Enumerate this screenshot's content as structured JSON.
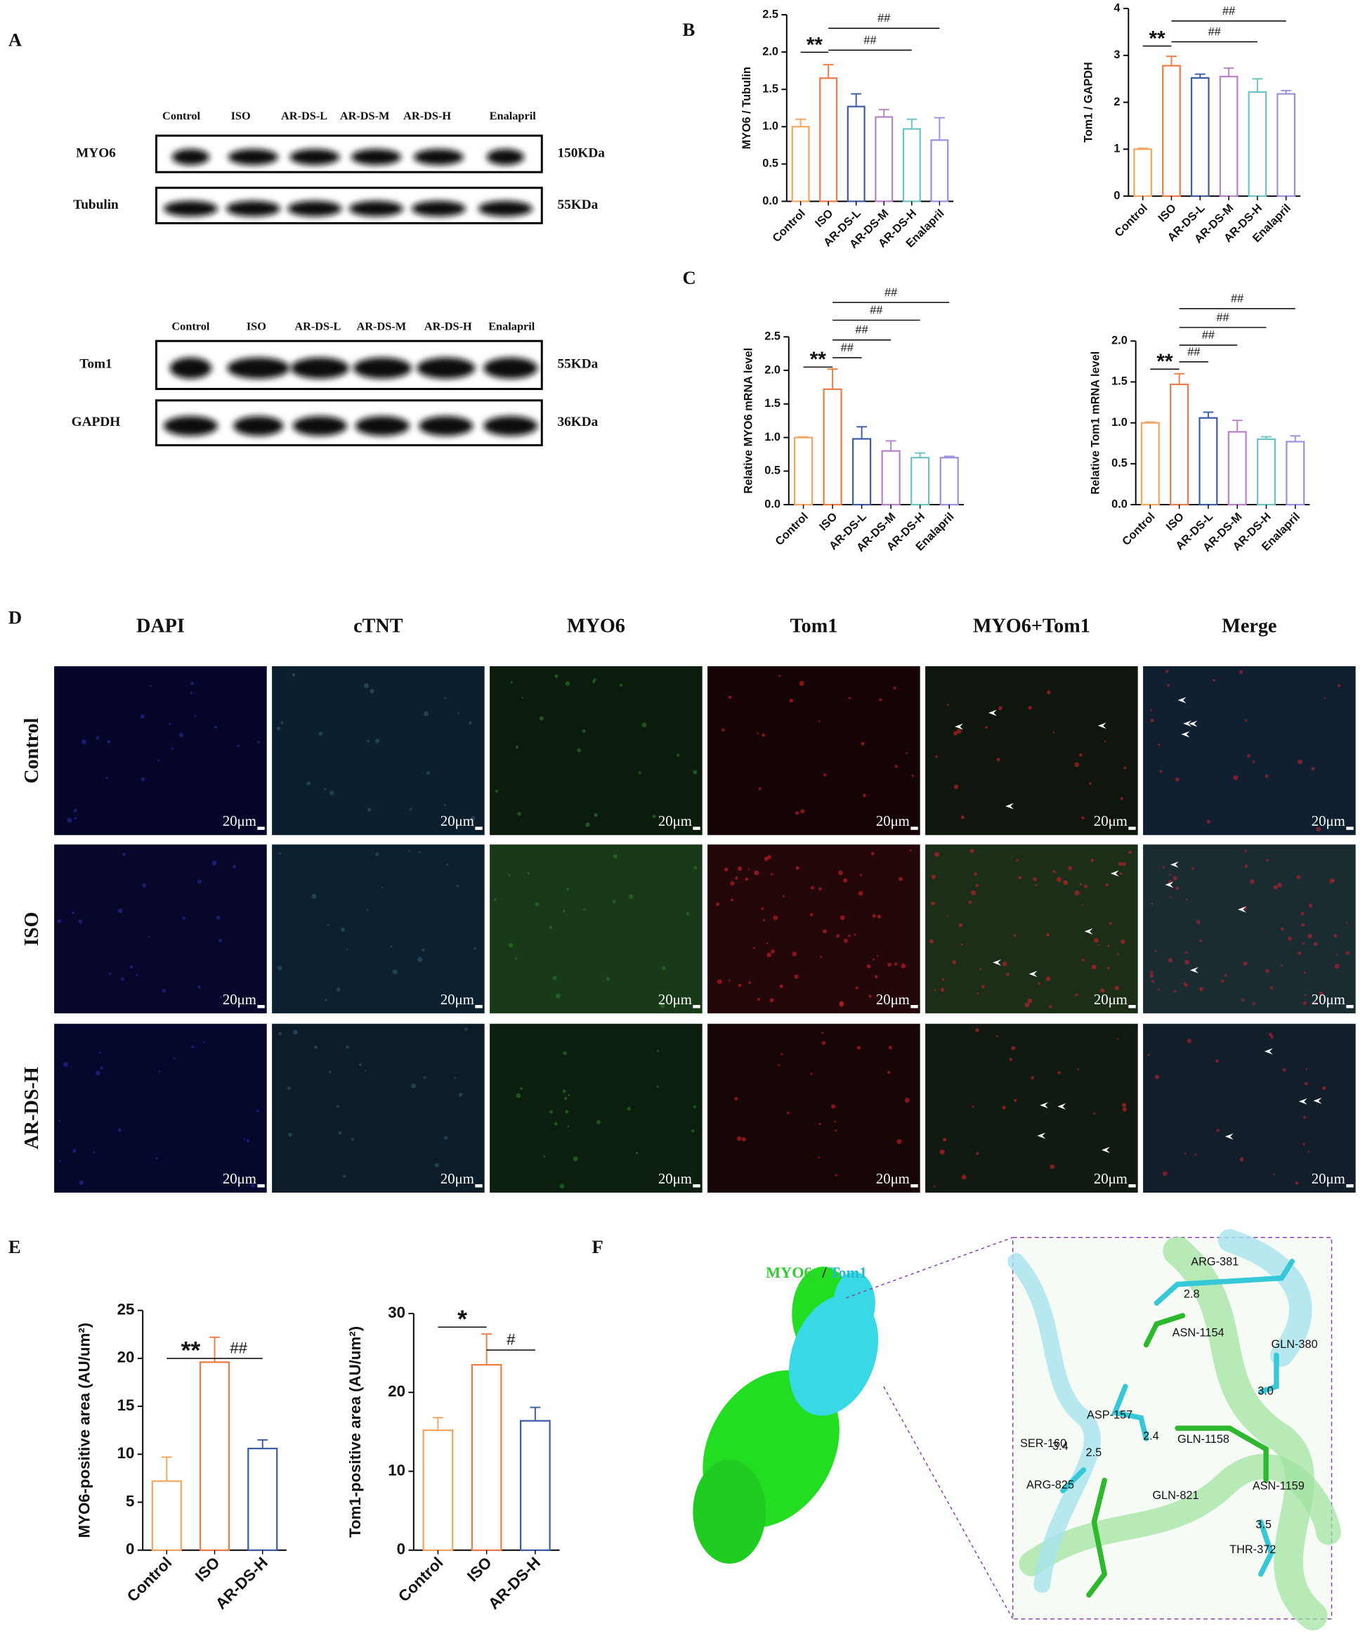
{
  "panel_labels": [
    "A",
    "B",
    "C",
    "D",
    "E",
    "F"
  ],
  "blot_1": {
    "lanes": [
      "Control",
      "ISO",
      "AR-DS-L",
      "AR-DS-M",
      "AR-DS-H",
      "Enalapril"
    ],
    "rows": [
      "MYO6",
      "Tubulin"
    ],
    "sizes": [
      "150KDa",
      "55KDa"
    ]
  },
  "blot_2": {
    "lanes": [
      "Control",
      "ISO",
      "AR-DS-L",
      "AR-DS-M",
      "AR-DS-H",
      "Enalapril"
    ],
    "rows": [
      "Tom1",
      "GAPDH"
    ],
    "sizes": [
      "55KDa",
      "36KDa"
    ]
  },
  "microscopy": {
    "columns": [
      "DAPI",
      "cTNT",
      "MYO6",
      "Tom1",
      "MYO6+Tom1",
      "Merge"
    ],
    "rows": [
      "Control",
      "ISO",
      "AR-DS-H"
    ],
    "scale_bar": "20μm"
  },
  "docking": {
    "legend": [
      "MYO6",
      "/",
      "Tom1"
    ],
    "labels": [
      "ARG-381",
      "2.8",
      "ASN-1154",
      "GLN-380",
      "3.0",
      "ASP-157",
      "GLN-1158",
      "SER-160",
      "3.4",
      "2.5",
      "2.4",
      "ASN-1159",
      "ARG-825",
      "GLN-821",
      "3.5",
      "THR-372"
    ]
  },
  "chart_data": [
    {
      "type": "bar",
      "y_label": "MYO6 / Tubulin",
      "categories": [
        "Control",
        "ISO",
        "AR-DS-L",
        "AR-DS-M",
        "AR-DS-H",
        "Enalapril"
      ],
      "values": [
        1.0,
        1.65,
        1.27,
        1.13,
        0.97,
        0.82
      ],
      "errors": [
        0.1,
        0.18,
        0.17,
        0.1,
        0.13,
        0.3
      ],
      "colors": [
        "#f5a55e",
        "#ee7b48",
        "#3d5ca8",
        "#b981c9",
        "#6cc4c2",
        "#9a92e0"
      ],
      "ylim": [
        0,
        2.5
      ],
      "yticks": [
        {
          "value": 0,
          "label": "0.0"
        },
        0.5,
        {
          "value": 1,
          "label": "1.0"
        },
        1.5,
        {
          "value": 2,
          "label": "2.0"
        },
        2.5
      ],
      "annotations": [
        "**",
        "##",
        "##"
      ]
    },
    {
      "type": "bar",
      "y_label": "Tom1 / GAPDH",
      "categories": [
        "Control",
        "ISO",
        "AR-DS-L",
        "AR-DS-M",
        "AR-DS-H",
        "Enalapril"
      ],
      "values": [
        1.0,
        2.78,
        2.52,
        2.55,
        2.22,
        2.18
      ],
      "errors": [
        0.02,
        0.2,
        0.08,
        0.18,
        0.28,
        0.07
      ],
      "colors": [
        "#f5a55e",
        "#ee7b48",
        "#3d5ca8",
        "#b981c9",
        "#6cc4c2",
        "#9a92e0"
      ],
      "ylim": [
        0,
        4
      ],
      "yticks": [
        0,
        1,
        2,
        3,
        4
      ],
      "annotations": [
        "**",
        "##",
        "##"
      ]
    },
    {
      "type": "bar",
      "y_label": "Relative MYO6 mRNA level",
      "categories": [
        "Control",
        "ISO",
        "AR-DS-L",
        "AR-DS-M",
        "AR-DS-H",
        "Enalapril"
      ],
      "values": [
        1.0,
        1.72,
        0.98,
        0.8,
        0.7,
        0.7
      ],
      "errors": [
        0.01,
        0.3,
        0.18,
        0.15,
        0.07,
        0.02
      ],
      "colors": [
        "#f5a55e",
        "#ee7b48",
        "#3d5ca8",
        "#b981c9",
        "#6cc4c2",
        "#9a92e0"
      ],
      "ylim": [
        0,
        2.5
      ],
      "yticks": [
        {
          "value": 0,
          "label": "0.0"
        },
        0.5,
        {
          "value": 1,
          "label": "1.0"
        },
        1.5,
        {
          "value": 2,
          "label": "2.0"
        },
        2.5
      ],
      "annotations": [
        "**",
        "##",
        "##",
        "##",
        "##"
      ]
    },
    {
      "type": "bar",
      "y_label": "Relative Tom1 mRNA level",
      "categories": [
        "Control",
        "ISO",
        "AR-DS-L",
        "AR-DS-M",
        "AR-DS-H",
        "Enalapril"
      ],
      "values": [
        1.0,
        1.47,
        1.06,
        0.89,
        0.8,
        0.77
      ],
      "errors": [
        0.01,
        0.13,
        0.07,
        0.14,
        0.03,
        0.07
      ],
      "colors": [
        "#f5a55e",
        "#ee7b48",
        "#3d5ca8",
        "#b981c9",
        "#6cc4c2",
        "#9a92e0"
      ],
      "ylim": [
        0,
        2
      ],
      "yticks": [
        {
          "value": 0,
          "label": "0.0"
        },
        0.5,
        {
          "value": 1,
          "label": "1.0"
        },
        1.5,
        {
          "value": 2,
          "label": "2.0"
        }
      ],
      "annotations": [
        "**",
        "##",
        "##",
        "##",
        "##"
      ]
    },
    {
      "type": "bar",
      "y_label": "MYO6-positive area (AU/um²)",
      "categories": [
        "Control",
        "ISO",
        "AR-DS-H"
      ],
      "values": [
        7.2,
        19.6,
        10.6
      ],
      "errors": [
        2.5,
        2.6,
        0.9
      ],
      "colors": [
        "#f5a55e",
        "#ee7b48",
        "#3d5ca8"
      ],
      "ylim": [
        0,
        25
      ],
      "yticks": [
        0,
        5,
        10,
        15,
        20,
        25
      ],
      "annotations": [
        "**",
        "##"
      ]
    },
    {
      "type": "bar",
      "y_label": "Tom1-positive area (AU/um²)",
      "categories": [
        "Control",
        "ISO",
        "AR-DS-H"
      ],
      "values": [
        15.2,
        23.5,
        16.4
      ],
      "errors": [
        1.6,
        3.9,
        1.7
      ],
      "colors": [
        "#f5a55e",
        "#ee7b48",
        "#3d5ca8"
      ],
      "ylim": [
        0,
        30
      ],
      "yticks": [
        0,
        10,
        20,
        30
      ],
      "annotations": [
        "*",
        "#"
      ]
    }
  ]
}
